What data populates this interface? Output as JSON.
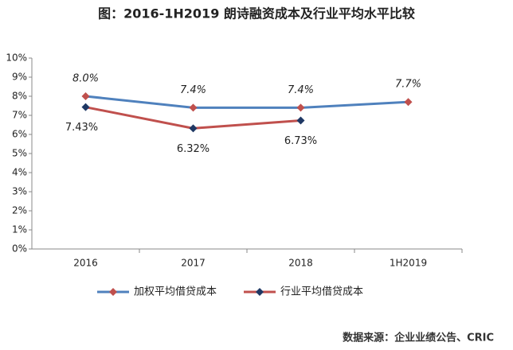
{
  "chart_data": {
    "type": "line",
    "title": "图：2016-1H2019 朗诗融资成本及行业平均水平比较",
    "source": "数据来源：企业业绩公告、CRIC",
    "categories": [
      "2016",
      "2017",
      "2018",
      "1H2019"
    ],
    "series": [
      {
        "name": "加权平均借贷成本",
        "color": "#4f81bd",
        "marker_color": "#c0504d",
        "values": [
          8.0,
          7.4,
          7.4,
          7.7
        ],
        "value_labels": [
          "8.0%",
          "7.4%",
          "7.4%",
          "7.7%"
        ]
      },
      {
        "name": "行业平均借贷成本",
        "color": "#c0504d",
        "marker_color": "#1f3864",
        "values": [
          7.43,
          6.32,
          6.73,
          null
        ],
        "value_labels": [
          "7.43%",
          "6.32%",
          "6.73%",
          null
        ]
      }
    ],
    "ylim": [
      0,
      10
    ],
    "yticks": [
      {
        "value": 0,
        "label": "0%"
      },
      {
        "value": 1,
        "label": "1%"
      },
      {
        "value": 2,
        "label": "2%"
      },
      {
        "value": 3,
        "label": "3%"
      },
      {
        "value": 4,
        "label": "4%"
      },
      {
        "value": 5,
        "label": "5%"
      },
      {
        "value": 6,
        "label": "6%"
      },
      {
        "value": 7,
        "label": "7%"
      },
      {
        "value": 8,
        "label": "8%"
      },
      {
        "value": 9,
        "label": "9%"
      },
      {
        "value": 10,
        "label": "10%"
      }
    ],
    "grid": false,
    "legend": "bottom"
  }
}
